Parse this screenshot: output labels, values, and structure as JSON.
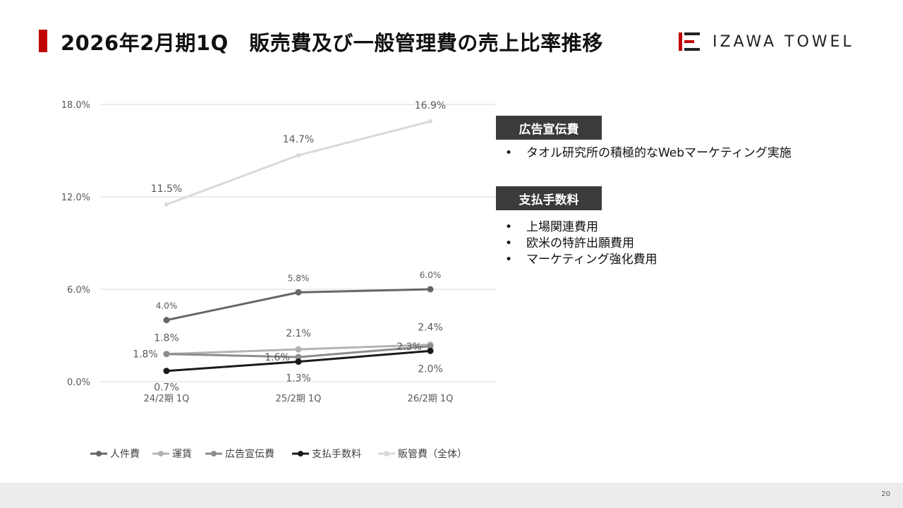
{
  "header": {
    "title": "2026年2月期1Q　販売費及び一般管理費の売上比率推移",
    "logo_text": "IZAWA TOWEL",
    "accent_color": "#c00000"
  },
  "chart_data": {
    "type": "line",
    "categories": [
      "24/2期 1Q",
      "25/2期 1Q",
      "26/2期 1Q"
    ],
    "ylim": [
      0,
      18
    ],
    "yticks": [
      "0.0%",
      "6.0%",
      "12.0%",
      "18.0%"
    ],
    "grid": true,
    "legend_position": "bottom",
    "series": [
      {
        "name": "人件費",
        "values": [
          4.0,
          5.8,
          6.0
        ],
        "labels": [
          "4.0%",
          "5.8%",
          "6.0%"
        ],
        "color": "#666666"
      },
      {
        "name": "運賃",
        "values": [
          1.8,
          2.1,
          2.4
        ],
        "labels": [
          "1.8%",
          "2.1%",
          "2.4%"
        ],
        "color": "#b3b3b3"
      },
      {
        "name": "広告宣伝費",
        "values": [
          1.8,
          1.6,
          2.3
        ],
        "labels": [
          "1.8%",
          "1.6%",
          "2.3%"
        ],
        "color": "#8c8c8c"
      },
      {
        "name": "支払手数料",
        "values": [
          0.7,
          1.3,
          2.0
        ],
        "labels": [
          "0.7%",
          "1.3%",
          "2.0%"
        ],
        "color": "#1a1a1a"
      },
      {
        "name": "販管費（全体）",
        "values": [
          11.5,
          14.7,
          16.9
        ],
        "labels": [
          "11.5%",
          "14.7%",
          "16.9%"
        ],
        "color": "#d9d9d9"
      }
    ]
  },
  "notes": {
    "ad": {
      "heading": "広告宣伝費",
      "bullet_char": "•",
      "items": [
        "タオル研究所の積極的なWebマーケティング実施"
      ]
    },
    "fees": {
      "heading": "支払手数料",
      "bullet_char": "•",
      "items": [
        "上場関連費用",
        "欧米の特許出願費用",
        "マーケティング強化費用"
      ]
    }
  },
  "footer": {
    "page_number": "20"
  }
}
